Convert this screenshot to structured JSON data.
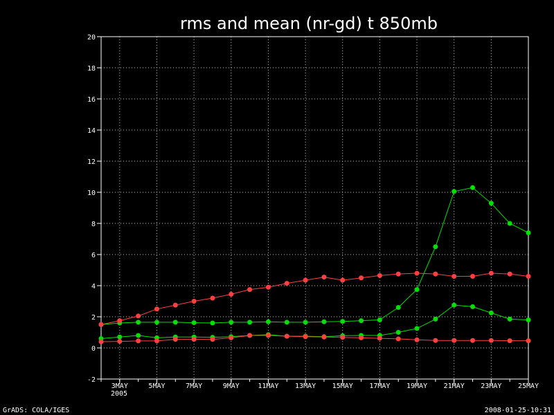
{
  "chart_data": {
    "type": "line",
    "title": "rms and mean (nr-gd) t 850mb",
    "xlabel": "",
    "ylabel": "",
    "x_range": [
      2,
      25
    ],
    "ylim": [
      -2,
      20
    ],
    "y_ticks": [
      -2,
      0,
      2,
      4,
      6,
      8,
      10,
      12,
      14,
      16,
      18,
      20
    ],
    "x_ticks": [
      {
        "day": 3,
        "label": "3MAY"
      },
      {
        "day": 5,
        "label": "5MAY"
      },
      {
        "day": 7,
        "label": "7MAY"
      },
      {
        "day": 9,
        "label": "9MAY"
      },
      {
        "day": 11,
        "label": "11MAY"
      },
      {
        "day": 13,
        "label": "13MAY"
      },
      {
        "day": 15,
        "label": "15MAY"
      },
      {
        "day": 17,
        "label": "17MAY"
      },
      {
        "day": 19,
        "label": "19MAY"
      },
      {
        "day": 21,
        "label": "21MAY"
      },
      {
        "day": 23,
        "label": "23MAY"
      },
      {
        "day": 25,
        "label": "25MAY"
      }
    ],
    "year_label": "2005",
    "grid": true,
    "x": [
      2,
      3,
      4,
      5,
      6,
      7,
      8,
      9,
      10,
      11,
      12,
      13,
      14,
      15,
      16,
      17,
      18,
      19,
      20,
      21,
      22,
      23,
      24,
      25
    ],
    "series": [
      {
        "color": "#00e000",
        "values": [
          1.5,
          1.6,
          1.65,
          1.65,
          1.65,
          1.62,
          1.6,
          1.65,
          1.65,
          1.68,
          1.65,
          1.65,
          1.68,
          1.7,
          1.75,
          1.8,
          2.6,
          3.75,
          6.5,
          10.05,
          10.3,
          9.3,
          8.0,
          7.4
        ]
      },
      {
        "color": "#ff4040",
        "values": [
          1.5,
          1.75,
          2.05,
          2.5,
          2.75,
          3.0,
          3.2,
          3.45,
          3.75,
          3.9,
          4.15,
          4.35,
          4.55,
          4.35,
          4.5,
          4.65,
          4.75,
          4.8,
          4.75,
          4.6,
          4.6,
          4.8,
          4.75,
          4.6
        ]
      },
      {
        "color": "#00e000",
        "values": [
          0.6,
          0.7,
          0.8,
          0.65,
          0.7,
          0.7,
          0.68,
          0.72,
          0.8,
          0.85,
          0.75,
          0.75,
          0.72,
          0.78,
          0.8,
          0.8,
          1.0,
          1.25,
          1.85,
          2.75,
          2.65,
          2.25,
          1.85,
          1.8
        ]
      },
      {
        "color": "#ff4040",
        "values": [
          0.4,
          0.42,
          0.45,
          0.45,
          0.55,
          0.55,
          0.55,
          0.65,
          0.8,
          0.8,
          0.75,
          0.72,
          0.7,
          0.68,
          0.65,
          0.62,
          0.58,
          0.52,
          0.48,
          0.48,
          0.48,
          0.48,
          0.46,
          0.46
        ]
      }
    ]
  },
  "footer": {
    "left": "GrADS: COLA/IGES",
    "right": "2008-01-25-10:31"
  }
}
